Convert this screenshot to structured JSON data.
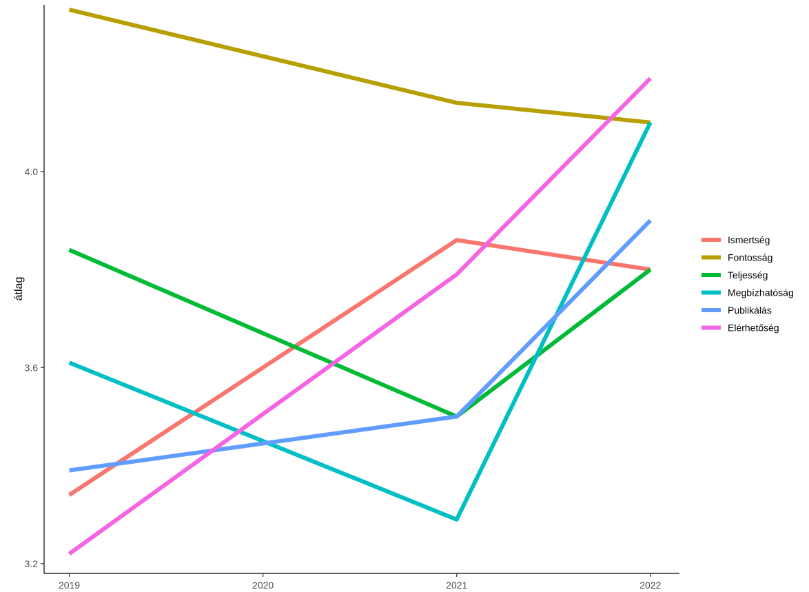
{
  "chart_data": {
    "type": "line",
    "title": "",
    "xlabel": "",
    "ylabel": "átlag",
    "x": [
      2019,
      2020,
      2021,
      2022
    ],
    "x_tick_labels": [
      "2019",
      "2020",
      "2021",
      "2022"
    ],
    "y_ticks": [
      3.2,
      3.6,
      4.0
    ],
    "y_tick_labels": [
      "3.2",
      "3.6",
      "4.0"
    ],
    "ylim": [
      3.18,
      4.34
    ],
    "xlim": [
      2018.87,
      2022.15
    ],
    "grid": false,
    "legend_position": "right",
    "series": [
      {
        "name": "Ismertség",
        "color": "#F8766D",
        "values": [
          3.34,
          null,
          3.86,
          3.8
        ]
      },
      {
        "name": "Fontosság",
        "color": "#B79F00",
        "values": [
          4.33,
          null,
          4.14,
          4.1
        ]
      },
      {
        "name": "Teljesség",
        "color": "#00BA38",
        "values": [
          3.84,
          null,
          3.5,
          3.8
        ]
      },
      {
        "name": "Megbízhatóság",
        "color": "#00BFC4",
        "values": [
          3.61,
          null,
          3.29,
          4.1
        ]
      },
      {
        "name": "Publikálás",
        "color": "#619CFF",
        "values": [
          3.39,
          null,
          3.5,
          3.9
        ]
      },
      {
        "name": "Elérhetőség",
        "color": "#F564E3",
        "values": [
          3.22,
          null,
          3.79,
          4.19
        ]
      }
    ]
  }
}
